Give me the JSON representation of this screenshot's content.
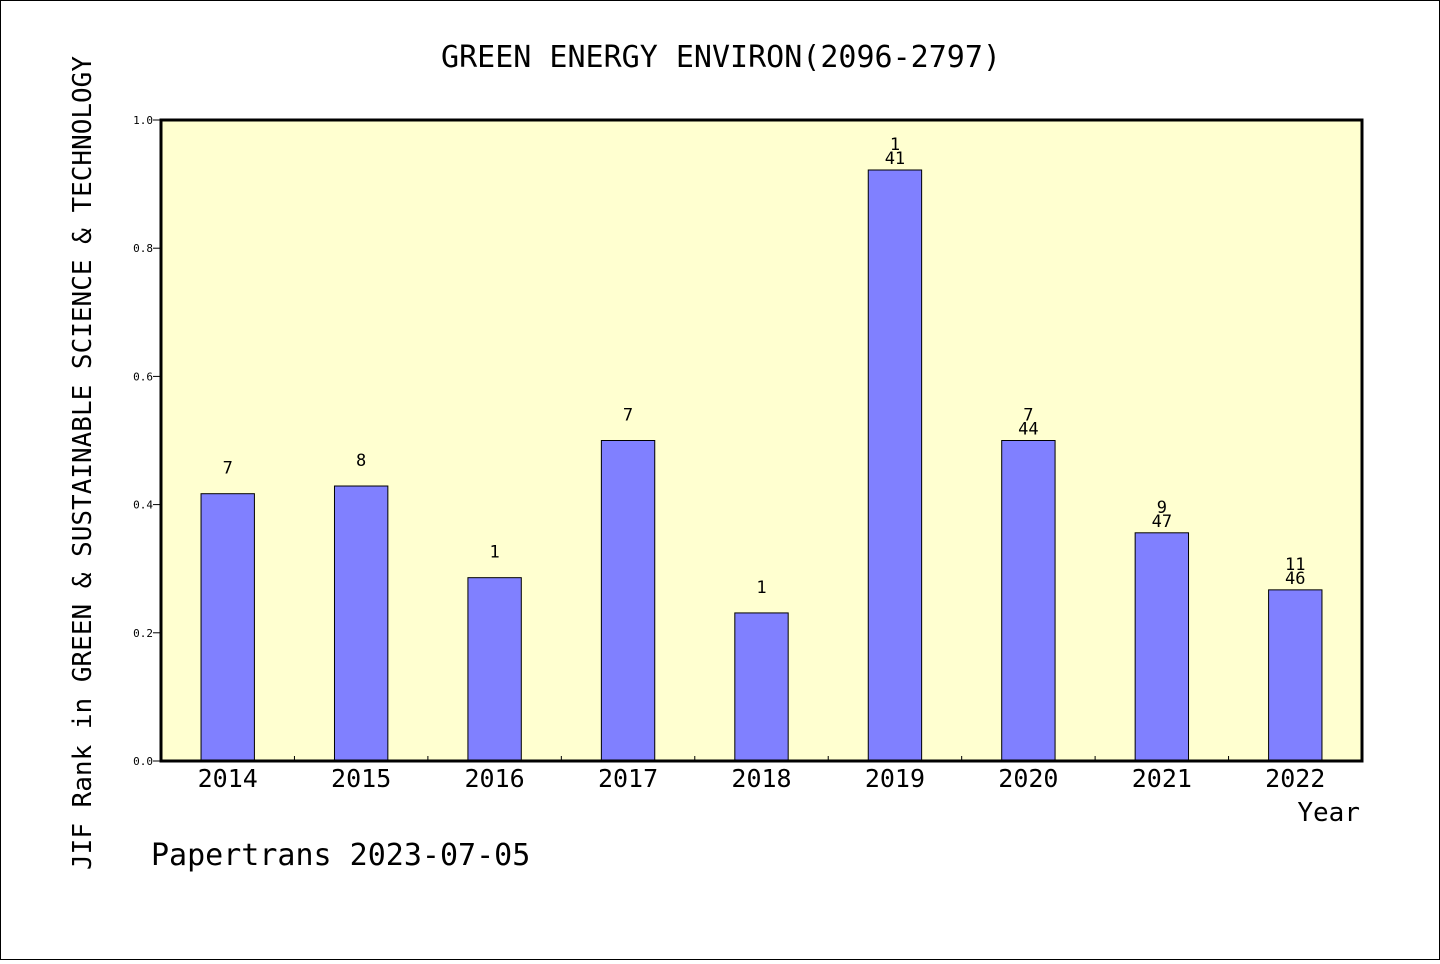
{
  "chart_data": {
    "type": "bar",
    "title": "GREEN ENERGY ENVIRON(2096-2797)",
    "xlabel": "Year",
    "ylabel": "JIF Rank in GREEN & SUSTAINABLE SCIENCE & TECHNOLOGY",
    "ylim": [
      0,
      1.0
    ],
    "yticks": [
      "0.0",
      "0.2",
      "0.4",
      "0.6",
      "0.8",
      "1.0"
    ],
    "categories": [
      "2014",
      "2015",
      "2016",
      "2017",
      "2018",
      "2019",
      "2020",
      "2021",
      "2022"
    ],
    "values": [
      0.417,
      0.429,
      0.286,
      0.5,
      0.231,
      0.922,
      0.5,
      0.356,
      0.267
    ],
    "rank_labels": [
      "7",
      "8",
      "1",
      "7",
      "1",
      "1",
      "7",
      "9",
      "11"
    ],
    "total_labels": [
      "",
      "",
      "",
      "",
      "",
      "41",
      "44",
      "47",
      "46"
    ],
    "bar_color": "#8080ff",
    "plot_background": "#ffffd0",
    "grid": false,
    "legend": "none"
  },
  "credit": "Papertrans 2023-07-05"
}
